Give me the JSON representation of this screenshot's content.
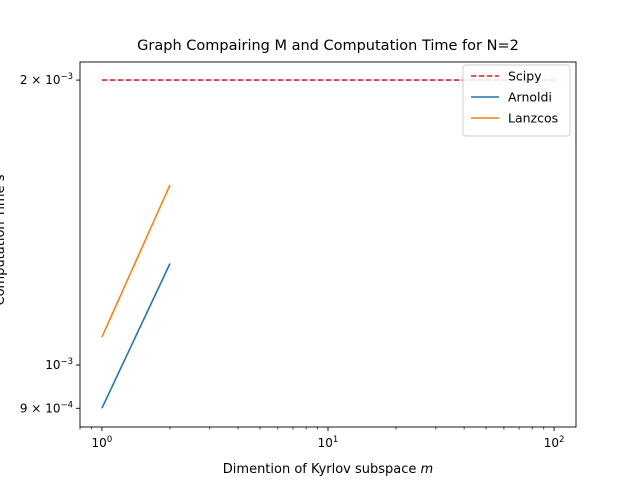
{
  "chart_data": {
    "type": "line",
    "title": "Graph Compairing M and Computation Time for N=2",
    "xlabel": "Dimention of Kyrlov subspace m",
    "xlabel_parts": {
      "text": "Dimention of Kyrlov subspace ",
      "var": "m"
    },
    "ylabel": "Computation Time s",
    "xscale": "log",
    "yscale": "log",
    "xlim": [
      0.8,
      125
    ],
    "ylim": [
      0.00086,
      0.00209
    ],
    "x_ticks": [
      {
        "value": 1,
        "base": "10",
        "exp": "0"
      },
      {
        "value": 10,
        "base": "10",
        "exp": "1"
      },
      {
        "value": 100,
        "base": "10",
        "exp": "2"
      }
    ],
    "y_ticks": [
      {
        "value": 0.0009,
        "mant": "9",
        "base": "10",
        "exp": "−4"
      },
      {
        "value": 0.001,
        "mant": "",
        "base": "10",
        "exp": "−3"
      },
      {
        "value": 0.002,
        "mant": "2",
        "base": "10",
        "exp": "−3"
      }
    ],
    "grid": false,
    "legend_position": "top-right",
    "series": [
      {
        "name": "Scipy",
        "color": "#d62728",
        "style": "dashed",
        "x": [
          1,
          100
        ],
        "y": [
          0.002,
          0.002
        ]
      },
      {
        "name": "Arnoldi",
        "color": "#1f77b4",
        "style": "solid",
        "x": [
          1,
          2
        ],
        "y": [
          0.0009,
          0.00128
        ]
      },
      {
        "name": "Lanzcos",
        "color": "#ff7f0e",
        "style": "solid",
        "x": [
          1,
          2
        ],
        "y": [
          0.00107,
          0.00155
        ]
      }
    ]
  }
}
